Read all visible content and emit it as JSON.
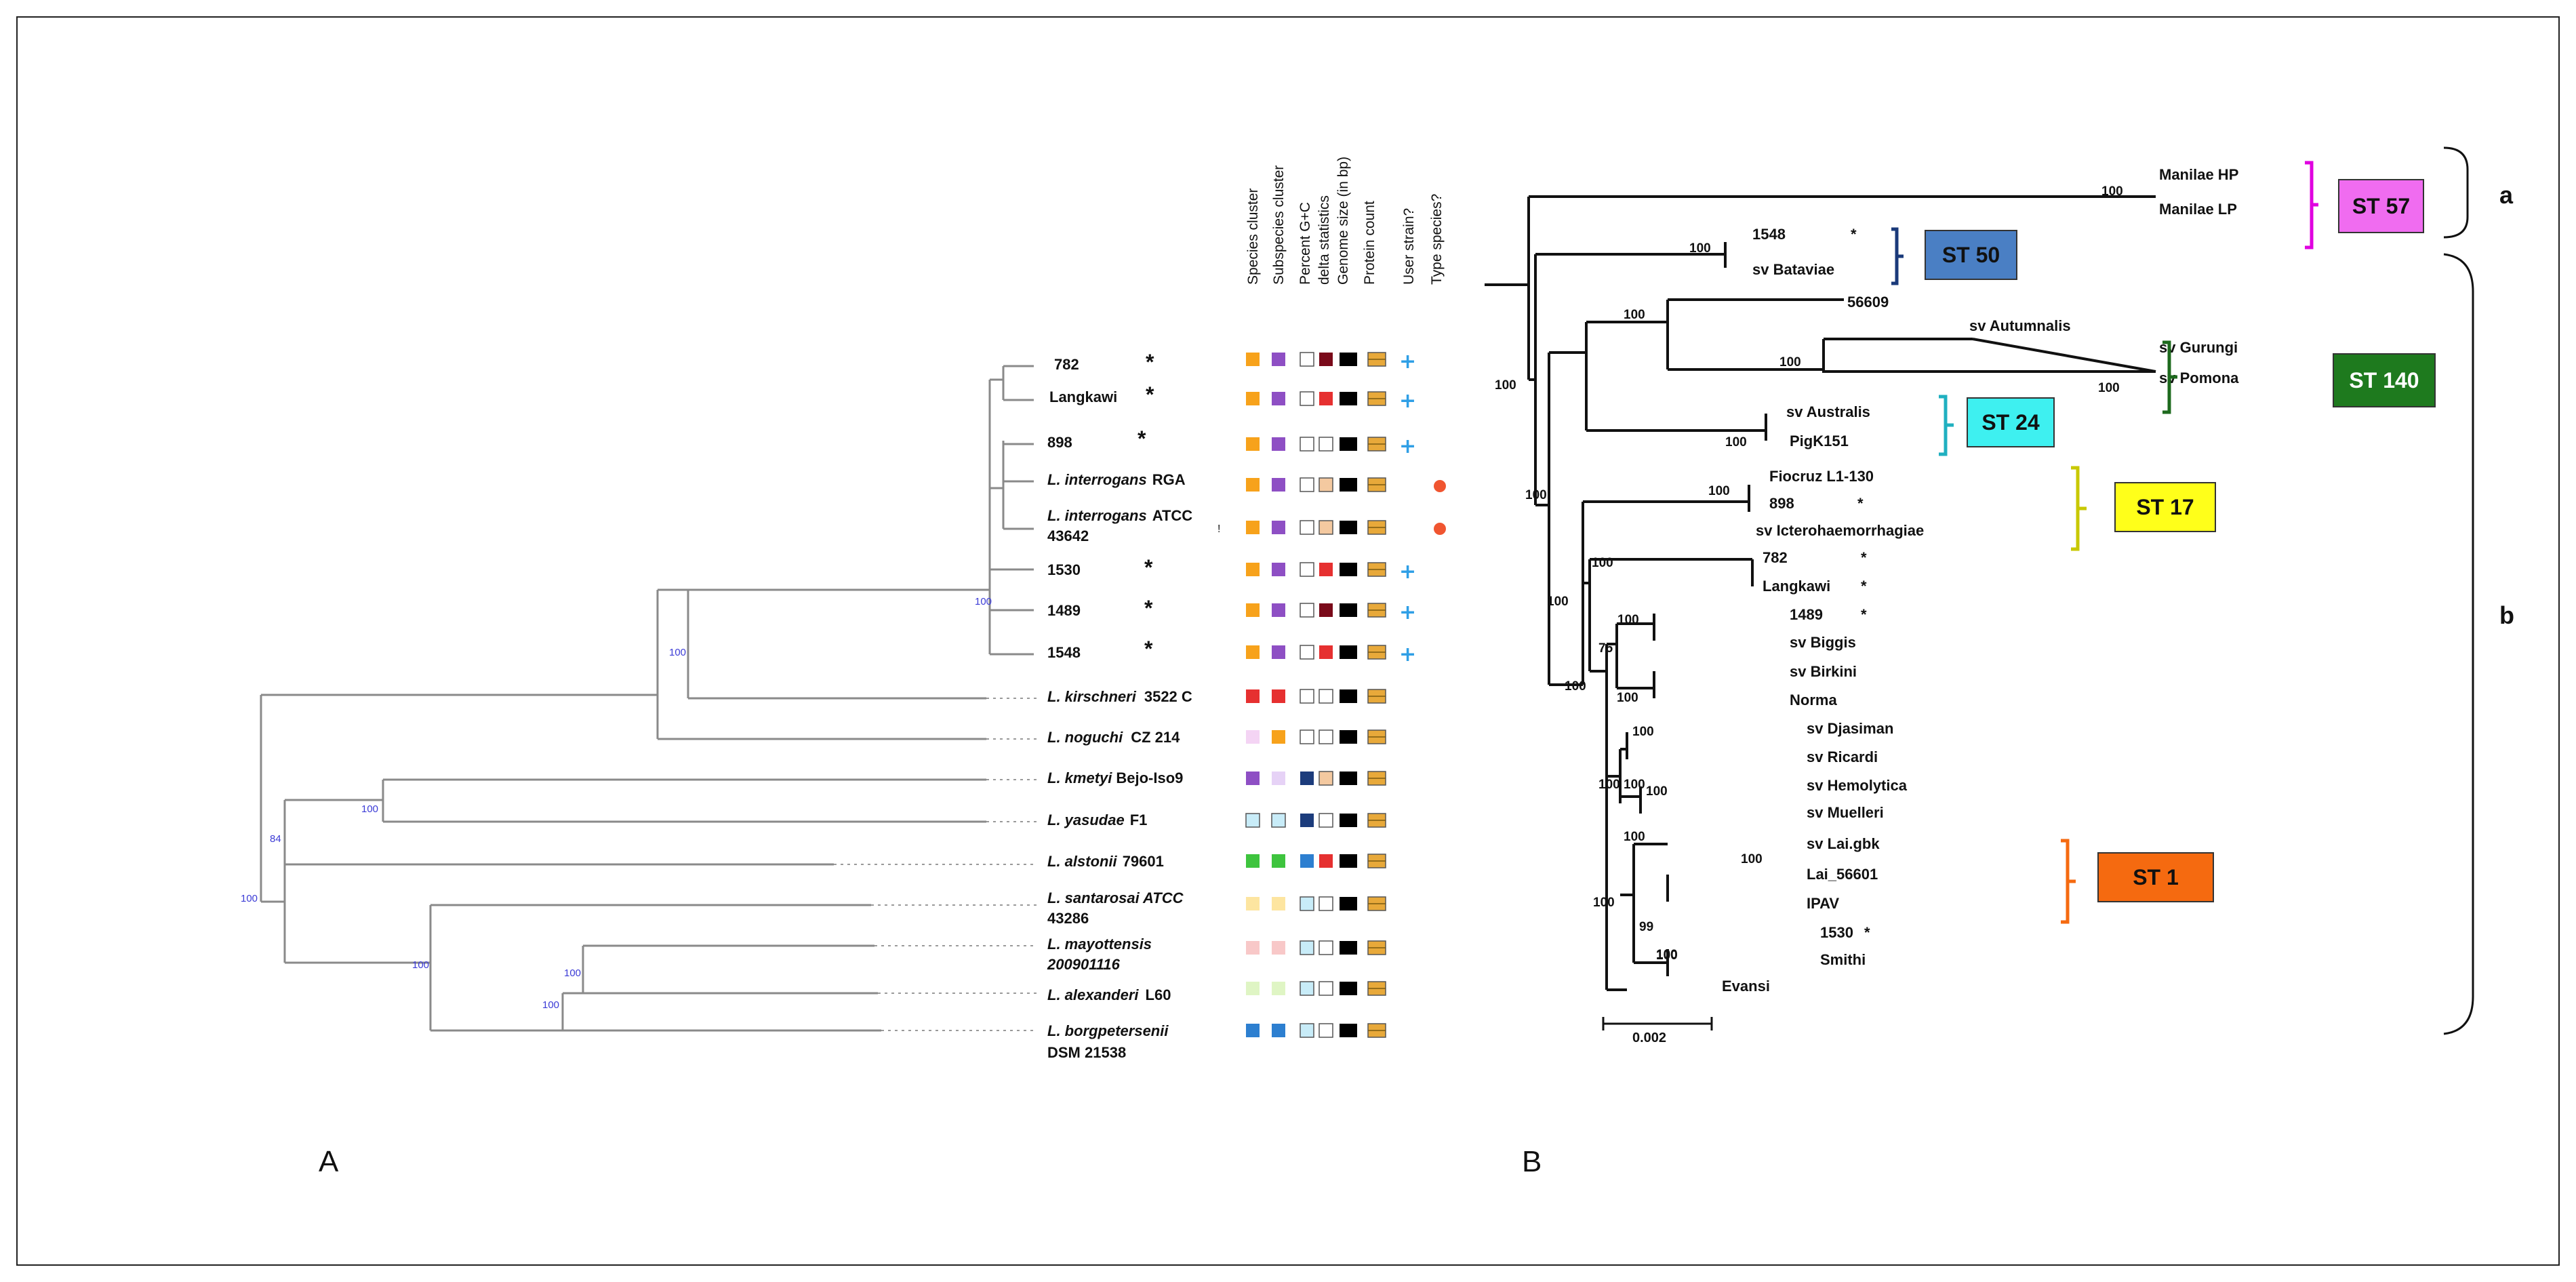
{
  "panel_a": {
    "label": "A",
    "column_headers": [
      "Species cluster",
      "Subspecies cluster",
      "Percent G+C",
      "delta statistics",
      "Genome size (in bp)",
      "Protein count",
      "User strain?",
      "Type species?"
    ],
    "taxa": [
      {
        "name": "782",
        "rest": "",
        "star": "*",
        "italic": false
      },
      {
        "name": "Langkawi",
        "rest": "",
        "star": "*",
        "italic": false
      },
      {
        "name": "898",
        "rest": "",
        "star": "*",
        "italic": false
      },
      {
        "name": "L. interrogans",
        "rest": "RGA",
        "star": "",
        "italic": true
      },
      {
        "name": "L. interrogans",
        "rest": "ATCC",
        "rest2": "43642",
        "star": "",
        "italic": true
      },
      {
        "name": "1530",
        "rest": "",
        "star": "*",
        "italic": false
      },
      {
        "name": "1489",
        "rest": "",
        "star": "*",
        "italic": false
      },
      {
        "name": "1548",
        "rest": "",
        "star": "*",
        "italic": false
      },
      {
        "name": "L. kirschneri",
        "rest": "3522 C",
        "star": "",
        "italic": true
      },
      {
        "name": "L. noguchi",
        "rest": "CZ 214",
        "star": "",
        "italic": true
      },
      {
        "name": "L. kmetyi",
        "rest": "Bejo-Iso9",
        "star": "",
        "italic": true
      },
      {
        "name": "L. yasudae",
        "rest": "F1",
        "star": "",
        "italic": true
      },
      {
        "name": "L. alstonii",
        "rest": "79601",
        "star": "",
        "italic": true
      },
      {
        "name": "L. santarosai ATCC",
        "rest": "",
        "rest2": "43286",
        "star": "",
        "italic": true
      },
      {
        "name": "L. mayottensis",
        "rest": "",
        "rest2": "200901116",
        "star": "",
        "italic": true
      },
      {
        "name": "L. alexanderi",
        "rest": "L60",
        "star": "",
        "italic": true
      },
      {
        "name": "L. borgpetersenii",
        "rest": "",
        "rest2": "DSM 21538",
        "star": "",
        "italic": true
      }
    ],
    "bootstraps": [
      "100",
      "100",
      "100",
      "100",
      "84",
      "100",
      "100",
      "100"
    ],
    "colors": {
      "orange": "#f7a21b",
      "purple": "#8e4fc4",
      "red": "#e63030",
      "pink": "#f4d4f4",
      "lightblue": "#c8ecf8",
      "lavender": "#e6d2f6",
      "green": "#3ec43e",
      "yellow": "#fde5a0",
      "salmon": "#f8c8c8",
      "lime": "#dff5c4",
      "blue": "#2d7fd0",
      "darkred": "#7a0a1a",
      "tan": "#f4c9a0",
      "navy": "#1c3c7c",
      "black": "#000000",
      "box": "#e8a93a",
      "cross": "#2f9fe6",
      "dot": "#f05530"
    }
  },
  "panel_b": {
    "label": "B",
    "leaves": [
      {
        "name": "Manilae HP",
        "star": ""
      },
      {
        "name": "Manilae  LP",
        "star": ""
      },
      {
        "name": "1548",
        "star": "*"
      },
      {
        "name": "sv Bataviae",
        "star": ""
      },
      {
        "name": "56609",
        "star": ""
      },
      {
        "name": "sv Autumnalis",
        "star": ""
      },
      {
        "name": "sv Gurungi",
        "star": ""
      },
      {
        "name": "sv Pomona",
        "star": ""
      },
      {
        "name": "sv Australis",
        "star": ""
      },
      {
        "name": "PigK151",
        "star": ""
      },
      {
        "name": "Fiocruz L1-130",
        "star": ""
      },
      {
        "name": "898",
        "star": "*"
      },
      {
        "name": "sv Icterohaemorrhagiae",
        "star": ""
      },
      {
        "name": "782",
        "star": "*"
      },
      {
        "name": "Langkawi",
        "star": "*"
      },
      {
        "name": "1489",
        "star": "*"
      },
      {
        "name": "sv Biggis",
        "star": ""
      },
      {
        "name": "sv Birkini",
        "star": ""
      },
      {
        "name": "Norma",
        "star": ""
      },
      {
        "name": "sv Djasiman",
        "star": ""
      },
      {
        "name": "sv Ricardi",
        "star": ""
      },
      {
        "name": "sv Hemolytica",
        "star": ""
      },
      {
        "name": "sv Muelleri",
        "star": ""
      },
      {
        "name": "sv Lai.gbk",
        "star": ""
      },
      {
        "name": "Lai_56601",
        "star": ""
      },
      {
        "name": "IPAV",
        "star": ""
      },
      {
        "name": "1530",
        "star": "*"
      },
      {
        "name": "Smithi",
        "star": ""
      },
      {
        "name": "Evansi",
        "star": ""
      }
    ],
    "bootstraps": [
      "100",
      "100",
      "100",
      "100",
      "100",
      "100",
      "100",
      "100",
      "100",
      "100",
      "100",
      "100",
      "100",
      "75",
      "100",
      "100",
      "100",
      "100",
      "100",
      "100",
      "100",
      "100",
      "100",
      "99",
      "100"
    ],
    "st_labels": [
      {
        "text": "ST 57",
        "color": "#f06cf0"
      },
      {
        "text": "ST 50",
        "color": "#4a7fc4"
      },
      {
        "text": "ST 140",
        "color": "#1e7a1e"
      },
      {
        "text": "ST 24",
        "color": "#3ef0f0"
      },
      {
        "text": "ST 17",
        "color": "#ffff1a"
      },
      {
        "text": "ST 1",
        "color": "#f56a10"
      }
    ],
    "group_labels": [
      "a",
      "b"
    ],
    "scale_bar": "0.002"
  }
}
